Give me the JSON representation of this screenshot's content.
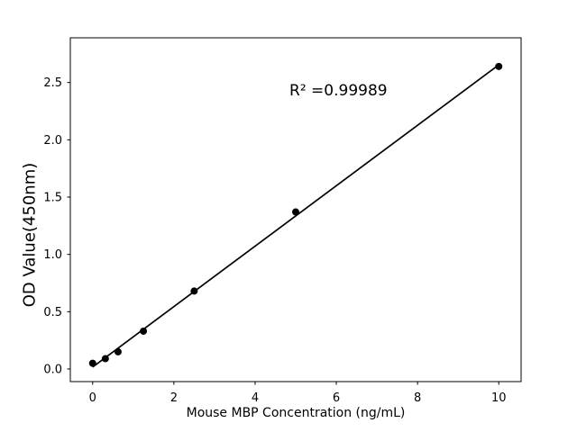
{
  "figure": {
    "background": "#ffffff",
    "foreground": "#000000"
  },
  "chart_data": {
    "type": "scatter",
    "title": "",
    "xlabel": "Mouse MBP Concentration (ng/mL)",
    "ylabel": "OD Value(450nm)",
    "annotation": {
      "text": "R² =0.99989",
      "x": 6.05,
      "y": 2.43
    },
    "x": [
      0,
      0.3125,
      0.625,
      1.25,
      2.5,
      5,
      10
    ],
    "y": [
      0.05,
      0.09,
      0.15,
      0.33,
      0.68,
      1.37,
      2.64
    ],
    "fit_line": {
      "show": true,
      "color": "#000000",
      "width": 1.7
    },
    "marker": {
      "shape": "circle",
      "color": "#000000",
      "radius": 4
    },
    "xlim": [
      -0.55,
      10.55
    ],
    "ylim": [
      -0.11,
      2.89
    ],
    "xticks": {
      "values": [
        0,
        2,
        4,
        6,
        8,
        10
      ],
      "labels": [
        "0",
        "2",
        "4",
        "6",
        "8",
        "10"
      ]
    },
    "yticks": {
      "values": [
        0,
        0.5,
        1,
        1.5,
        2,
        2.5
      ],
      "labels": [
        "0.0",
        "0.5",
        "1.0",
        "1.5",
        "2.0",
        "2.5"
      ]
    },
    "grid": false,
    "legend_position": "none"
  }
}
